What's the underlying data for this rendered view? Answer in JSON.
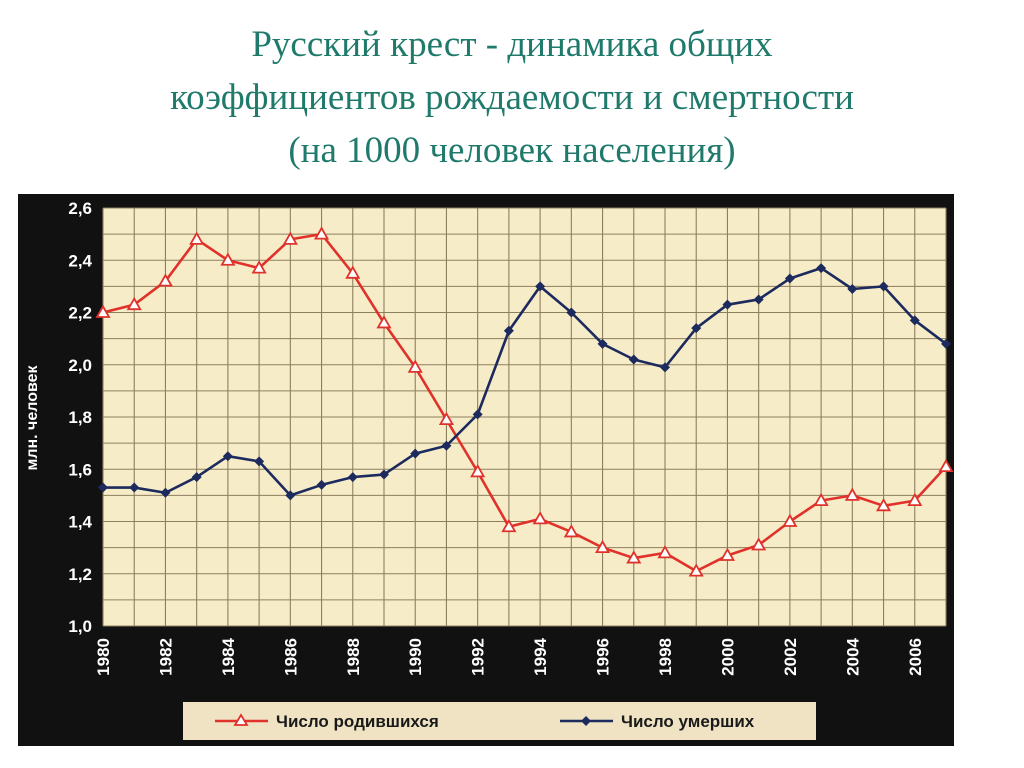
{
  "title_lines": [
    "Русский крест - динамика общих",
    "коэффициентов рождаемости и смертности",
    "(на 1000 человек населения)"
  ],
  "colors": {
    "frame": "#111111",
    "plot_bg": "#f7ecc8",
    "grid": "#8c7f5e",
    "births": "#e0312a",
    "deaths": "#1c2a5e",
    "legend_bg": "#efe3c3"
  },
  "chart_data": {
    "type": "line",
    "ylabel": "млн. человек",
    "xlabel": "",
    "x": [
      1980,
      1981,
      1982,
      1983,
      1984,
      1985,
      1986,
      1987,
      1988,
      1989,
      1990,
      1991,
      1992,
      1993,
      1994,
      1995,
      1996,
      1997,
      1998,
      1999,
      2000,
      2001,
      2002,
      2003,
      2004,
      2005,
      2006,
      2007
    ],
    "x_tick_labels": [
      "1980",
      "1982",
      "1984",
      "1986",
      "1988",
      "1990",
      "1992",
      "1994",
      "1996",
      "1998",
      "2000",
      "2002",
      "2004",
      "2006"
    ],
    "y_tick_labels": [
      "2,6",
      "2,4",
      "2,2",
      "2,0",
      "1,8",
      "1,6",
      "1,4",
      "1,2",
      "1,0"
    ],
    "ylim": [
      1.0,
      2.6
    ],
    "xlim": [
      1980,
      2007
    ],
    "grid": true,
    "legend_position": "bottom",
    "series": [
      {
        "name": "Число родившихся",
        "marker": "triangle",
        "values": [
          2.2,
          2.23,
          2.32,
          2.48,
          2.4,
          2.37,
          2.48,
          2.5,
          2.35,
          2.16,
          1.99,
          1.79,
          1.59,
          1.38,
          1.41,
          1.36,
          1.3,
          1.26,
          1.28,
          1.21,
          1.27,
          1.31,
          1.4,
          1.48,
          1.5,
          1.46,
          1.48,
          1.61
        ]
      },
      {
        "name": "Число умерших",
        "marker": "diamond",
        "values": [
          1.53,
          1.53,
          1.51,
          1.57,
          1.65,
          1.63,
          1.5,
          1.54,
          1.57,
          1.58,
          1.66,
          1.69,
          1.81,
          2.13,
          2.3,
          2.2,
          2.08,
          2.02,
          1.99,
          2.14,
          2.23,
          2.25,
          2.33,
          2.37,
          2.29,
          2.3,
          2.17,
          2.08
        ]
      }
    ]
  }
}
